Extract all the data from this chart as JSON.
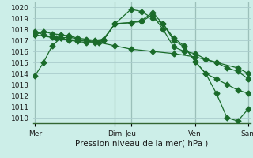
{
  "background_color": "#cceee8",
  "grid_color": "#aacccc",
  "line_color": "#1a6b2a",
  "xlabel": "Pression niveau de la mer( hPa )",
  "ylim": [
    1009.5,
    1020.5
  ],
  "yticks": [
    1010,
    1011,
    1012,
    1013,
    1014,
    1015,
    1016,
    1017,
    1018,
    1019,
    1020
  ],
  "xlim": [
    -0.1,
    10.1
  ],
  "xtick_positions": [
    0.0,
    3.75,
    4.5,
    7.5,
    10.0
  ],
  "xtick_labels": [
    "Mer",
    "Dim",
    "Jeu",
    "Ven",
    "Sam"
  ],
  "vline_positions": [
    0.0,
    3.75,
    4.5,
    7.5,
    10.0
  ],
  "series": [
    {
      "x": [
        0.0,
        0.4,
        0.8,
        1.2,
        1.6,
        2.0,
        2.4,
        2.8,
        3.2,
        3.75,
        4.5,
        5.0,
        5.5,
        6.0,
        6.5,
        7.0,
        7.5,
        8.0,
        8.5,
        9.0,
        9.5,
        10.0
      ],
      "y": [
        1013.8,
        1015.0,
        1016.5,
        1017.2,
        1017.3,
        1017.1,
        1017.0,
        1016.9,
        1017.0,
        1018.5,
        1019.8,
        1019.6,
        1019.0,
        1018.5,
        1017.2,
        1016.5,
        1015.1,
        1014.0,
        1012.2,
        1010.0,
        1009.7,
        1010.8
      ]
    },
    {
      "x": [
        0.0,
        0.4,
        0.8,
        1.2,
        1.6,
        2.0,
        2.4,
        2.8,
        3.2,
        3.75,
        4.5,
        5.0,
        5.5,
        6.0,
        6.5,
        7.0,
        7.5,
        8.0,
        8.5,
        9.0,
        9.5,
        10.0
      ],
      "y": [
        1017.5,
        1017.8,
        1017.6,
        1017.5,
        1017.4,
        1017.2,
        1017.1,
        1017.0,
        1017.1,
        1018.5,
        1018.6,
        1018.8,
        1019.5,
        1018.5,
        1017.0,
        1016.4,
        1015.1,
        1014.0,
        1013.5,
        1013.0,
        1012.5,
        1012.2
      ]
    },
    {
      "x": [
        0.0,
        0.4,
        0.8,
        1.2,
        1.6,
        2.0,
        2.4,
        2.8,
        3.2,
        3.75,
        4.5,
        5.0,
        5.5,
        6.0,
        6.5,
        7.0,
        7.5,
        8.0,
        8.5,
        9.0,
        9.5,
        10.0
      ],
      "y": [
        1017.8,
        1017.5,
        1017.3,
        1017.2,
        1017.0,
        1016.9,
        1016.8,
        1016.8,
        1017.0,
        1018.5,
        1018.6,
        1018.7,
        1019.3,
        1018.0,
        1016.4,
        1016.0,
        1015.8,
        1015.3,
        1015.0,
        1014.5,
        1014.2,
        1013.5
      ]
    },
    {
      "x": [
        0.0,
        1.0,
        2.0,
        3.0,
        3.75,
        4.5,
        5.5,
        6.5,
        7.5,
        8.5,
        9.5,
        10.0
      ],
      "y": [
        1017.5,
        1017.2,
        1017.0,
        1016.8,
        1016.5,
        1016.2,
        1016.0,
        1015.8,
        1015.5,
        1015.0,
        1014.5,
        1014.0
      ]
    }
  ]
}
